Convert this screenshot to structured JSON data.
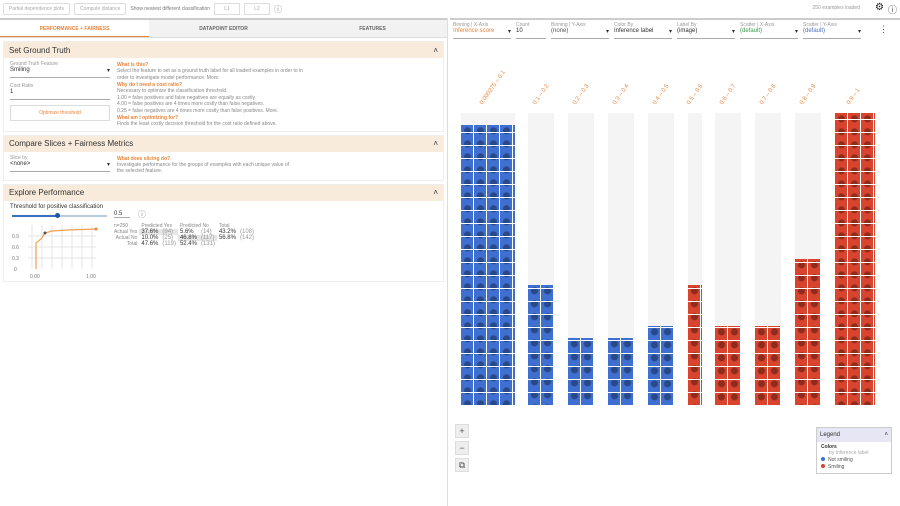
{
  "toolbar": {
    "pdp": "Partial dependence plots",
    "compute": "Compute distance",
    "nearest": "Show nearest different classification",
    "l1": "L1",
    "l2": "L2"
  },
  "tabs": [
    {
      "label": "PERFORMANCE + FAIRNESS"
    },
    {
      "label": "DATAPOINT EDITOR"
    },
    {
      "label": "FEATURES"
    }
  ],
  "ground": {
    "title": "Set Ground Truth",
    "feature_label": "Ground Truth Feature",
    "feature": "Smiling",
    "cost_label": "Cost Ratio",
    "cost": "1",
    "optimize": "Optimize threshold",
    "h1": "What is this?",
    "p1": "Select the feature to set as a ground truth label for all loaded examples in order to in order to investigate model performance. More.",
    "h2": "Why do I need a cost ratio?",
    "p2a": "Necessary to optimize the classification threshold.",
    "p2b": "1.00 = false positives and false negatives are equally as costly.",
    "p2c": "4.00 = false positives are 4 times more costly than false negatives.",
    "p2d": "0.25 = false negatives are 4 times more costly than false positives. More.",
    "h3": "What am I optimizing for?",
    "p3": "Finds the least costly decision threshold for the cost ratio defined above."
  },
  "slices": {
    "title": "Compare Slices + Fairness Metrics",
    "label": "Slice by",
    "value": "<none>",
    "h": "What does slicing do?",
    "p": "Investigate performance for the groups of examples with each unique value of the selected feature."
  },
  "perf": {
    "title": "Explore Performance",
    "threshold_label": "Threshold for positive classification",
    "threshold": "0.5",
    "threshold_value": 0.5,
    "roc_yticks": [
      "0.9",
      "0.6",
      "0.3",
      "0"
    ],
    "roc_xticks": [
      "0.00",
      "1.00"
    ],
    "cm": {
      "n": "n=250",
      "headers": [
        "Predicted Yes",
        "Predicted No",
        "Total"
      ],
      "rows": [
        [
          "Actual Yes",
          "37.6%",
          "(94)",
          "5.6%",
          "(14)",
          "43.2%",
          "(108)"
        ],
        [
          "Actual No",
          "10.0%",
          "(25)",
          "46.8%",
          "(117)",
          "56.8%",
          "(142)"
        ],
        [
          "Total",
          "47.6%",
          "(119)",
          "52.4%",
          "(131)",
          "",
          ""
        ]
      ]
    }
  },
  "status": "250 examples loaded",
  "controls": [
    {
      "label": "Binning | X-Axis",
      "value": "Inference score",
      "color": "#e8853d"
    },
    {
      "label": "Count",
      "value": "10",
      "color": "#333"
    },
    {
      "label": "Binning | Y-Axis",
      "value": "(none)",
      "color": "#555"
    },
    {
      "label": "Color By",
      "value": "Inference label",
      "color": "#333"
    },
    {
      "label": "Label By",
      "value": "(image)",
      "color": "#333"
    },
    {
      "label": "Scatter | X-Axis",
      "value": "(default)",
      "color": "#3a9a4a"
    },
    {
      "label": "Scatter | Y-Axis",
      "value": "(default)",
      "color": "#4a6fc0"
    }
  ],
  "bins": [
    {
      "label": "0.000275 – 0.1",
      "fill": 0.96,
      "cls": "not"
    },
    {
      "label": "0.1 – 0.2",
      "fill": 0.41,
      "cls": "not"
    },
    {
      "label": "0.2 – 0.3",
      "fill": 0.23,
      "cls": "not"
    },
    {
      "label": "0.3 – 0.4",
      "fill": 0.23,
      "cls": "not"
    },
    {
      "label": "0.4 – 0.5",
      "fill": 0.27,
      "cls": "not"
    },
    {
      "label": "0.5 – 0.6",
      "fill": 0.41,
      "cls": "smile"
    },
    {
      "label": "0.6 – 0.7",
      "fill": 0.27,
      "cls": "smile"
    },
    {
      "label": "0.7 – 0.8",
      "fill": 0.27,
      "cls": "smile"
    },
    {
      "label": "0.8 – 0.9",
      "fill": 0.5,
      "cls": "smile"
    },
    {
      "label": "0.9 – 1",
      "fill": 1.0,
      "cls": "smile"
    }
  ],
  "legend": {
    "title": "Legend",
    "colors": "Colors",
    "by": "by Inference label",
    "items": [
      {
        "label": "Not smiling",
        "color": "#3f6fd0"
      },
      {
        "label": "Smiling",
        "color": "#d9442e"
      }
    ]
  }
}
